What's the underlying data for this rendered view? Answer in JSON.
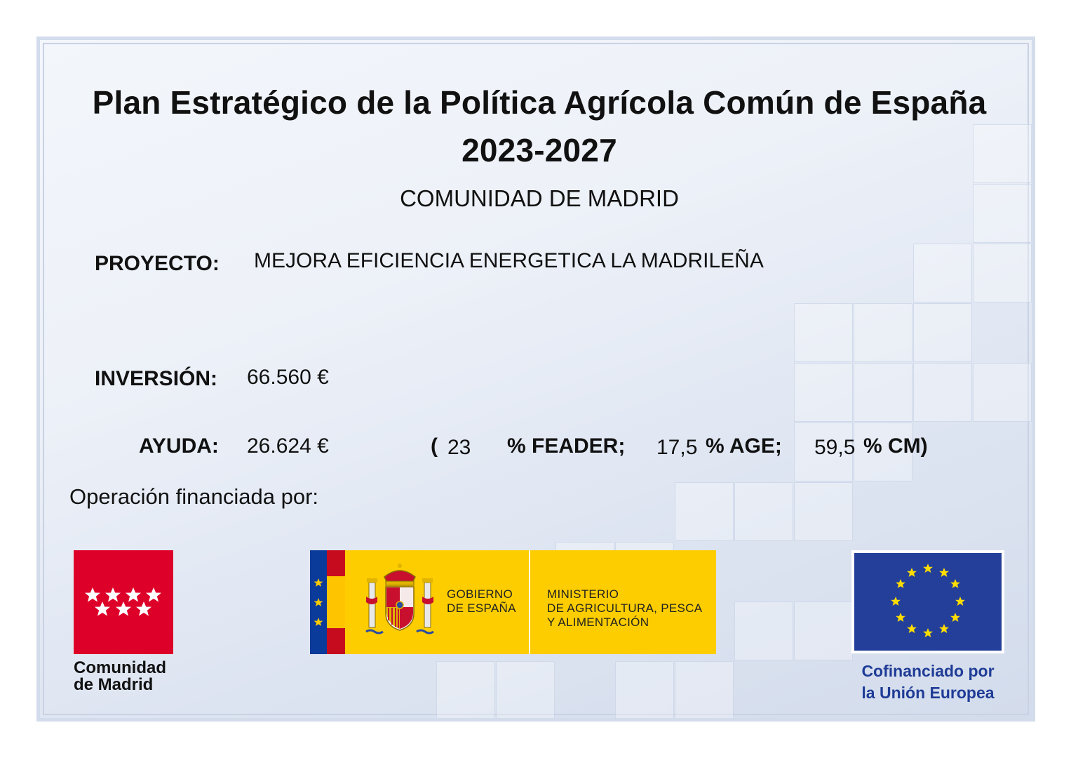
{
  "title_line1": "Plan Estratégico de la Política Agrícola Común de España",
  "title_line2": "2023-2027",
  "region": "COMUNIDAD DE MADRID",
  "proyecto": {
    "label": "PROYECTO:",
    "value": "MEJORA EFICIENCIA ENERGETICA  LA MADRILEÑA"
  },
  "inversion": {
    "label": "INVERSIÓN:",
    "value": "66.560 €"
  },
  "ayuda": {
    "label": "AYUDA:",
    "value": "26.624 €",
    "open_paren": "(",
    "feader_value": "23",
    "feader_label": "% FEADER;",
    "age_value": "17,5",
    "age_label": "% AGE;",
    "cm_value": "59,5",
    "cm_label": "% CM)"
  },
  "financed_by": "Operación financiada por:",
  "logos": {
    "comunidad_madrid": {
      "line1": "Comunidad",
      "line2": "de Madrid",
      "color": "#dd0029"
    },
    "gobierno": {
      "line1": "GOBIERNO",
      "line2": "DE ESPAÑA",
      "ministerio_line1": "MINISTERIO",
      "ministerio_line2": "DE AGRICULTURA, PESCA",
      "ministerio_line3": "Y ALIMENTACIÓN",
      "color": "#fdcd00"
    },
    "eu": {
      "line1": "Cofinanciado por",
      "line2": "la Unión Europea",
      "color": "#233f9a"
    }
  }
}
